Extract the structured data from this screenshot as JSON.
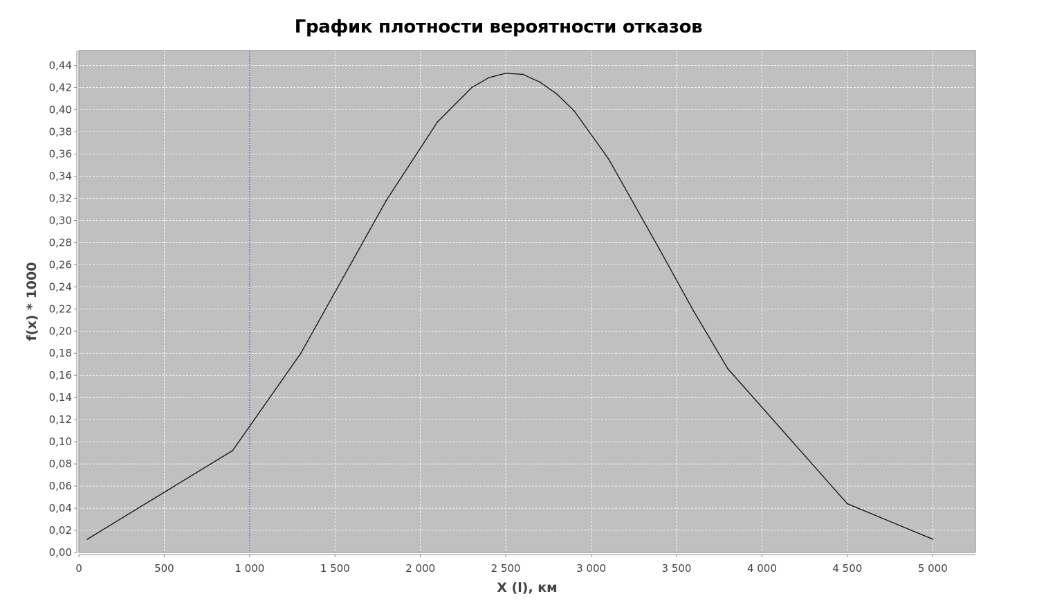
{
  "chart_data": {
    "type": "line",
    "title": "График плотности вероятности отказов",
    "xlabel": "X (l), км",
    "ylabel": "f(x) * 1000",
    "xlim": [
      0,
      5250
    ],
    "ylim": [
      0,
      0.4535
    ],
    "x_ticks": [
      0,
      500,
      1000,
      1500,
      2000,
      2500,
      3000,
      3500,
      4000,
      4500,
      5000
    ],
    "x_tick_labels": [
      "0",
      "500",
      "1 000",
      "1 500",
      "2 000",
      "2 500",
      "3 000",
      "3 500",
      "4 000",
      "4 500",
      "5 000"
    ],
    "y_ticks": [
      0,
      0.02,
      0.04,
      0.06,
      0.08,
      0.1,
      0.12,
      0.14,
      0.16,
      0.18,
      0.2,
      0.22,
      0.24,
      0.26,
      0.28,
      0.3,
      0.32,
      0.34,
      0.36,
      0.38,
      0.4,
      0.42,
      0.44
    ],
    "y_tick_labels": [
      "0,00",
      "0,02",
      "0,04",
      "0,06",
      "0,08",
      "0,10",
      "0,12",
      "0,14",
      "0,16",
      "0,18",
      "0,20",
      "0,22",
      "0,24",
      "0,26",
      "0,28",
      "0,30",
      "0,32",
      "0,34",
      "0,36",
      "0,38",
      "0,40",
      "0,42",
      "0,44"
    ],
    "grid": true,
    "marker_x": 1000,
    "series": [
      {
        "x": [
          50,
          900,
          1300,
          1800,
          2100,
          2300,
          2400,
          2500,
          2600,
          2700,
          2800,
          2900,
          3100,
          3400,
          3600,
          3800,
          4500,
          5000
        ],
        "values": [
          0.012,
          0.092,
          0.18,
          0.318,
          0.389,
          0.42,
          0.429,
          0.433,
          0.432,
          0.425,
          0.414,
          0.399,
          0.356,
          0.274,
          0.218,
          0.166,
          0.044,
          0.012
        ],
        "color": "#1a1a1a"
      }
    ],
    "colors": {
      "plot_background": "#c0c0c0",
      "grid": "#ffffff",
      "marker": "#3f47e0",
      "axis": "#888888",
      "tick_text": "#444444"
    }
  }
}
